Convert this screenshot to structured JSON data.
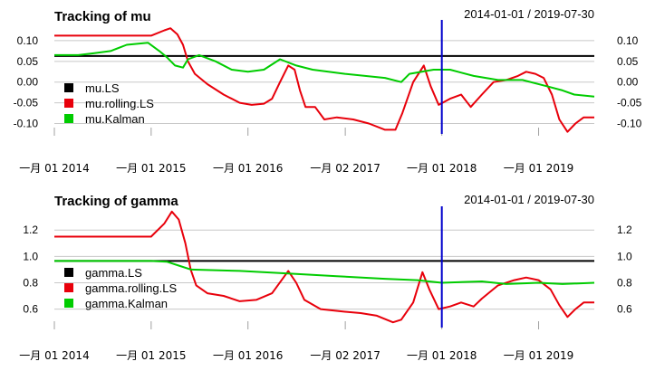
{
  "chart_data": [
    {
      "type": "line",
      "title": "Tracking of mu",
      "range_label": "2014-01-01 / 2019-07-30",
      "x_ticks": [
        "一月 01 2014",
        "一月 01 2015",
        "一月 01 2016",
        "一月 02 2017",
        "一月 01 2018",
        "一月 01 2019"
      ],
      "x_tick_dates": [
        "2014-01-01",
        "2015-01-01",
        "2016-01-01",
        "2017-01-02",
        "2018-01-01",
        "2019-01-01"
      ],
      "x_range": [
        "2014-01-01",
        "2019-07-30"
      ],
      "y_ticks": [
        "0.10",
        "0.05",
        "0.00",
        "-0.05",
        "-0.10"
      ],
      "ylim": [
        -0.125,
        0.15
      ],
      "grid": true,
      "legend_position": "left",
      "reference_lines": {
        "horizontal_value": 0.063,
        "vertical_date": "2018-01-01"
      },
      "series": [
        {
          "name": "mu.LS",
          "color": "#000000",
          "points": [
            [
              "2014-01-01",
              0.063
            ],
            [
              "2019-07-30",
              0.063
            ]
          ]
        },
        {
          "name": "mu.rolling.LS",
          "color": "#e8000b",
          "points": [
            [
              "2014-01-01",
              0.112
            ],
            [
              "2014-12-01",
              0.112
            ],
            [
              "2015-01-01",
              0.112
            ],
            [
              "2015-02-20",
              0.125
            ],
            [
              "2015-03-15",
              0.13
            ],
            [
              "2015-04-10",
              0.115
            ],
            [
              "2015-05-01",
              0.09
            ],
            [
              "2015-05-20",
              0.05
            ],
            [
              "2015-06-15",
              0.02
            ],
            [
              "2015-08-01",
              -0.005
            ],
            [
              "2015-10-01",
              -0.03
            ],
            [
              "2015-12-01",
              -0.05
            ],
            [
              "2016-01-15",
              -0.055
            ],
            [
              "2016-03-01",
              -0.052
            ],
            [
              "2016-04-01",
              -0.04
            ],
            [
              "2016-05-01",
              0.0
            ],
            [
              "2016-06-01",
              0.04
            ],
            [
              "2016-06-25",
              0.03
            ],
            [
              "2016-07-15",
              -0.02
            ],
            [
              "2016-08-05",
              -0.06
            ],
            [
              "2016-09-10",
              -0.06
            ],
            [
              "2016-10-15",
              -0.09
            ],
            [
              "2016-12-01",
              -0.085
            ],
            [
              "2017-02-01",
              -0.09
            ],
            [
              "2017-04-01",
              -0.1
            ],
            [
              "2017-06-01",
              -0.115
            ],
            [
              "2017-07-10",
              -0.115
            ],
            [
              "2017-08-05",
              -0.075
            ],
            [
              "2017-09-15",
              0.0
            ],
            [
              "2017-10-25",
              0.04
            ],
            [
              "2017-11-20",
              -0.01
            ],
            [
              "2017-12-20",
              -0.055
            ],
            [
              "2018-02-01",
              -0.04
            ],
            [
              "2018-03-15",
              -0.03
            ],
            [
              "2018-04-20",
              -0.06
            ],
            [
              "2018-06-01",
              -0.03
            ],
            [
              "2018-07-15",
              0.0
            ],
            [
              "2018-09-01",
              0.005
            ],
            [
              "2018-10-15",
              0.015
            ],
            [
              "2018-11-15",
              0.025
            ],
            [
              "2018-12-20",
              0.02
            ],
            [
              "2019-01-20",
              0.01
            ],
            [
              "2019-02-20",
              -0.03
            ],
            [
              "2019-03-20",
              -0.09
            ],
            [
              "2019-04-20",
              -0.12
            ],
            [
              "2019-05-20",
              -0.1
            ],
            [
              "2019-06-20",
              -0.085
            ],
            [
              "2019-07-30",
              -0.085
            ]
          ]
        },
        {
          "name": "mu.Kalman",
          "color": "#00cc00",
          "points": [
            [
              "2014-01-01",
              0.065
            ],
            [
              "2014-04-01",
              0.065
            ],
            [
              "2014-06-01",
              0.07
            ],
            [
              "2014-08-01",
              0.075
            ],
            [
              "2014-10-01",
              0.09
            ],
            [
              "2014-12-20",
              0.095
            ],
            [
              "2015-02-01",
              0.075
            ],
            [
              "2015-03-01",
              0.06
            ],
            [
              "2015-04-01",
              0.04
            ],
            [
              "2015-05-01",
              0.035
            ],
            [
              "2015-05-20",
              0.055
            ],
            [
              "2015-07-01",
              0.065
            ],
            [
              "2015-09-01",
              0.05
            ],
            [
              "2015-11-01",
              0.03
            ],
            [
              "2016-01-01",
              0.025
            ],
            [
              "2016-03-01",
              0.03
            ],
            [
              "2016-05-01",
              0.055
            ],
            [
              "2016-07-01",
              0.04
            ],
            [
              "2016-09-01",
              0.03
            ],
            [
              "2017-01-01",
              0.02
            ],
            [
              "2017-06-01",
              0.01
            ],
            [
              "2017-08-01",
              0.0
            ],
            [
              "2017-09-01",
              0.02
            ],
            [
              "2017-12-01",
              0.03
            ],
            [
              "2018-02-01",
              0.03
            ],
            [
              "2018-05-01",
              0.015
            ],
            [
              "2018-08-01",
              0.005
            ],
            [
              "2018-11-01",
              0.005
            ],
            [
              "2019-02-01",
              -0.01
            ],
            [
              "2019-04-01",
              -0.02
            ],
            [
              "2019-05-15",
              -0.03
            ],
            [
              "2019-07-30",
              -0.035
            ]
          ]
        }
      ]
    },
    {
      "type": "line",
      "title": "Tracking of gamma",
      "range_label": "2014-01-01 / 2019-07-30",
      "x_ticks": [
        "一月 01 2014",
        "一月 01 2015",
        "一月 01 2016",
        "一月 02 2017",
        "一月 01 2018",
        "一月 01 2019"
      ],
      "x_tick_dates": [
        "2014-01-01",
        "2015-01-01",
        "2016-01-01",
        "2017-01-02",
        "2018-01-01",
        "2019-01-01"
      ],
      "x_range": [
        "2014-01-01",
        "2019-07-30"
      ],
      "y_ticks": [
        "1.2",
        "1.0",
        "0.8",
        "0.6"
      ],
      "ylim": [
        0.46,
        1.38
      ],
      "grid": true,
      "legend_position": "left",
      "reference_lines": {
        "horizontal_value": 0.965,
        "vertical_date": "2018-01-01"
      },
      "series": [
        {
          "name": "gamma.LS",
          "color": "#000000",
          "points": [
            [
              "2014-01-01",
              0.965
            ],
            [
              "2019-07-30",
              0.965
            ]
          ]
        },
        {
          "name": "gamma.rolling.LS",
          "color": "#e8000b",
          "points": [
            [
              "2014-01-01",
              1.15
            ],
            [
              "2014-12-01",
              1.15
            ],
            [
              "2015-01-01",
              1.15
            ],
            [
              "2015-02-20",
              1.25
            ],
            [
              "2015-03-20",
              1.34
            ],
            [
              "2015-04-15",
              1.28
            ],
            [
              "2015-05-10",
              1.1
            ],
            [
              "2015-05-30",
              0.9
            ],
            [
              "2015-06-20",
              0.78
            ],
            [
              "2015-08-01",
              0.72
            ],
            [
              "2015-10-01",
              0.7
            ],
            [
              "2015-12-01",
              0.66
            ],
            [
              "2016-02-01",
              0.67
            ],
            [
              "2016-04-01",
              0.72
            ],
            [
              "2016-06-01",
              0.89
            ],
            [
              "2016-07-01",
              0.8
            ],
            [
              "2016-08-01",
              0.67
            ],
            [
              "2016-10-01",
              0.6
            ],
            [
              "2017-01-01",
              0.58
            ],
            [
              "2017-03-01",
              0.57
            ],
            [
              "2017-05-01",
              0.55
            ],
            [
              "2017-07-01",
              0.5
            ],
            [
              "2017-08-01",
              0.52
            ],
            [
              "2017-09-15",
              0.65
            ],
            [
              "2017-10-20",
              0.88
            ],
            [
              "2017-11-15",
              0.75
            ],
            [
              "2017-12-20",
              0.6
            ],
            [
              "2018-02-01",
              0.62
            ],
            [
              "2018-03-15",
              0.65
            ],
            [
              "2018-05-01",
              0.62
            ],
            [
              "2018-06-01",
              0.68
            ],
            [
              "2018-08-01",
              0.78
            ],
            [
              "2018-10-01",
              0.82
            ],
            [
              "2018-11-15",
              0.84
            ],
            [
              "2019-01-01",
              0.82
            ],
            [
              "2019-02-15",
              0.75
            ],
            [
              "2019-03-20",
              0.63
            ],
            [
              "2019-04-20",
              0.54
            ],
            [
              "2019-05-20",
              0.6
            ],
            [
              "2019-06-20",
              0.65
            ],
            [
              "2019-07-30",
              0.65
            ]
          ]
        },
        {
          "name": "gamma.Kalman",
          "color": "#00cc00",
          "points": [
            [
              "2014-01-01",
              0.965
            ],
            [
              "2015-01-01",
              0.965
            ],
            [
              "2015-03-01",
              0.96
            ],
            [
              "2015-04-15",
              0.93
            ],
            [
              "2015-06-01",
              0.9
            ],
            [
              "2015-12-01",
              0.89
            ],
            [
              "2016-06-01",
              0.87
            ],
            [
              "2016-12-01",
              0.85
            ],
            [
              "2017-06-01",
              0.83
            ],
            [
              "2017-10-01",
              0.82
            ],
            [
              "2018-01-01",
              0.8
            ],
            [
              "2018-06-01",
              0.81
            ],
            [
              "2018-09-01",
              0.79
            ],
            [
              "2019-01-01",
              0.8
            ],
            [
              "2019-04-01",
              0.79
            ],
            [
              "2019-07-30",
              0.8
            ]
          ]
        }
      ]
    }
  ]
}
